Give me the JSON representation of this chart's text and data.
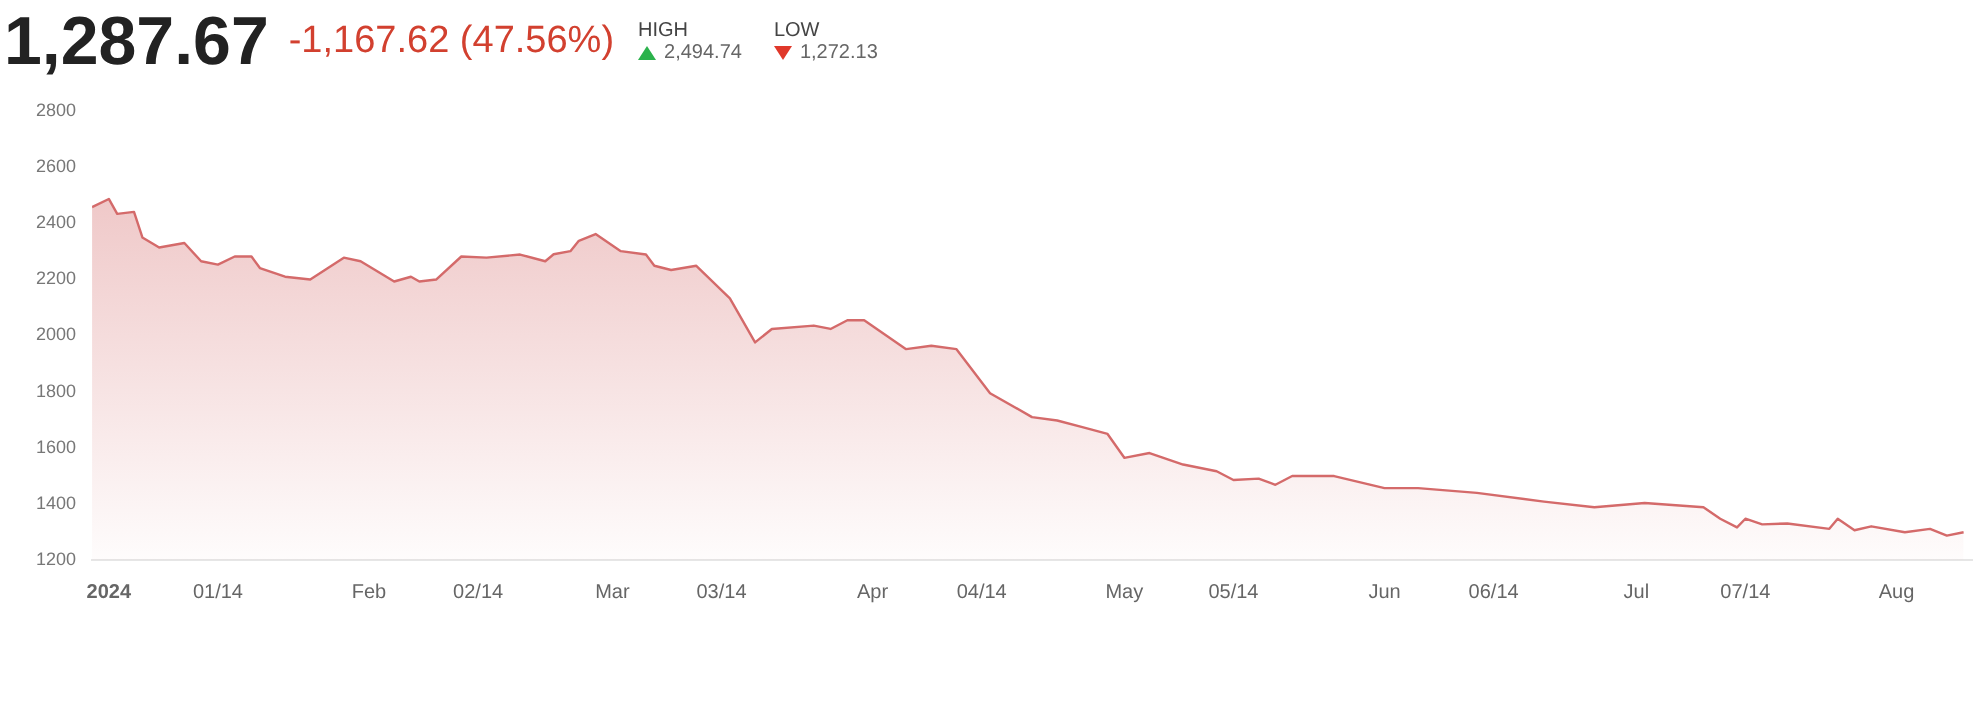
{
  "chart_data": {
    "type": "area",
    "title": "1,287.67",
    "subtitle": "-1,167.62 (47.56%)",
    "annotations": [
      "HIGH",
      "2,494.74",
      "LOW",
      "1,272.13"
    ],
    "x": [
      "2023-12-30",
      "2024-01-01",
      "2024-01-02",
      "2024-01-04",
      "2024-01-05",
      "2024-01-07",
      "2024-01-10",
      "2024-01-12",
      "2024-01-14",
      "2024-01-16",
      "2024-01-18",
      "2024-01-19",
      "2024-01-22",
      "2024-01-25",
      "2024-01-29",
      "2024-01-31",
      "2024-02-04",
      "2024-02-06",
      "2024-02-07",
      "2024-02-09",
      "2024-02-12",
      "2024-02-15",
      "2024-02-19",
      "2024-02-22",
      "2024-02-23",
      "2024-02-25",
      "2024-02-26",
      "2024-02-28",
      "2024-03-02",
      "2024-03-05",
      "2024-03-06",
      "2024-03-08",
      "2024-03-11",
      "2024-03-15",
      "2024-03-18",
      "2024-03-20",
      "2024-03-25",
      "2024-03-27",
      "2024-03-29",
      "2024-03-31",
      "2024-04-05",
      "2024-04-08",
      "2024-04-11",
      "2024-04-15",
      "2024-04-20",
      "2024-04-23",
      "2024-04-26",
      "2024-04-29",
      "2024-05-01",
      "2024-05-04",
      "2024-05-08",
      "2024-05-12",
      "2024-05-14",
      "2024-05-17",
      "2024-05-19",
      "2024-05-21",
      "2024-05-26",
      "2024-06-01",
      "2024-06-05",
      "2024-06-12",
      "2024-06-20",
      "2024-06-26",
      "2024-07-02",
      "2024-07-09",
      "2024-07-11",
      "2024-07-13",
      "2024-07-14",
      "2024-07-16",
      "2024-07-19",
      "2024-07-24",
      "2024-07-25",
      "2024-07-27",
      "2024-07-29",
      "2024-08-02",
      "2024-08-05",
      "2024-08-07",
      "2024-08-09"
    ],
    "series": [
      {
        "color": "#d46a6a",
        "values": [
          2457,
          2486,
          2433,
          2440,
          2349,
          2313,
          2329,
          2264,
          2252,
          2281,
          2281,
          2240,
          2209,
          2199,
          2277,
          2264,
          2192,
          2209,
          2192,
          2199,
          2281,
          2277,
          2288,
          2264,
          2289,
          2300,
          2337,
          2361,
          2300,
          2288,
          2248,
          2233,
          2248,
          2132,
          1975,
          2023,
          2035,
          2023,
          2054,
          2054,
          1951,
          1963,
          1951,
          1794,
          1709,
          1697,
          1673,
          1649,
          1564,
          1581,
          1540,
          1516,
          1485,
          1490,
          1468,
          1499,
          1499,
          1456,
          1456,
          1439,
          1408,
          1388,
          1403,
          1388,
          1347,
          1316,
          1347,
          1327,
          1330,
          1311,
          1347,
          1306,
          1320,
          1299,
          1311,
          1287,
          1299
        ]
      }
    ],
    "xticks": [
      {
        "value": "2024-01-01",
        "label": "2024"
      },
      {
        "value": "2024-01-14",
        "label": "01/14"
      },
      {
        "value": "2024-02-01",
        "label": "Feb"
      },
      {
        "value": "2024-02-14",
        "label": "02/14"
      },
      {
        "value": "2024-03-01",
        "label": "Mar"
      },
      {
        "value": "2024-03-14",
        "label": "03/14"
      },
      {
        "value": "2024-04-01",
        "label": "Apr"
      },
      {
        "value": "2024-04-14",
        "label": "04/14"
      },
      {
        "value": "2024-05-01",
        "label": "May"
      },
      {
        "value": "2024-05-14",
        "label": "05/14"
      },
      {
        "value": "2024-06-01",
        "label": "Jun"
      },
      {
        "value": "2024-06-14",
        "label": "06/14"
      },
      {
        "value": "2024-07-01",
        "label": "Jul"
      },
      {
        "value": "2024-07-14",
        "label": "07/14"
      },
      {
        "value": "2024-08-01",
        "label": "Aug"
      }
    ],
    "xlim": [
      "2023-12-30",
      "2024-08-10"
    ],
    "ylim": [
      1200,
      2800
    ],
    "yticks": [
      1200,
      1400,
      1600,
      1800,
      2000,
      2200,
      2400,
      2600,
      2800
    ]
  }
}
